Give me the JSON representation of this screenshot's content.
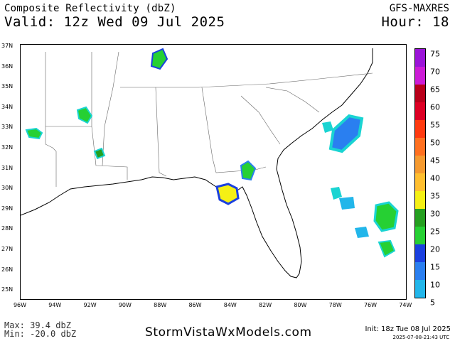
{
  "header": {
    "title": "Composite Reflectivity (dbZ)",
    "valid": "Valid: 12z Wed 09 Jul 2025",
    "model": "GFS-MAXRES",
    "hour": "Hour: 18"
  },
  "map": {
    "lat_labels": [
      "37N",
      "36N",
      "35N",
      "34N",
      "33N",
      "32N",
      "31N",
      "30N",
      "29N",
      "28N",
      "27N",
      "26N",
      "25N"
    ],
    "lon_labels": [
      "96W",
      "94W",
      "92W",
      "90W",
      "88W",
      "86W",
      "84W",
      "82W",
      "80W",
      "78W",
      "76W",
      "74W"
    ],
    "lat_range": [
      24.7,
      37.0
    ],
    "lon_range": [
      -96.0,
      -74.0
    ]
  },
  "colorbar": {
    "labels": [
      "75",
      "70",
      "65",
      "60",
      "55",
      "50",
      "45",
      "40",
      "35",
      "30",
      "25",
      "20",
      "15",
      "10",
      "5"
    ],
    "colors": [
      "#9b14d8",
      "#cc1cd6",
      "#b8001a",
      "#dd0024",
      "#ff3a10",
      "#ff7020",
      "#f59a30",
      "#ffbf30",
      "#f5f015",
      "#259f20",
      "#26d033",
      "#1a40e0",
      "#2a7ff0",
      "#22b6ea",
      "#1ad4d2"
    ]
  },
  "footer": {
    "max": "Max: 39.4 dbZ",
    "min": "Min: -20.0 dbZ",
    "site": "StormVistaWxModels.com",
    "init": "Init: 18z Tue 08 Jul 2025",
    "timestamp": "2025-07-08-21:43 UTC"
  }
}
